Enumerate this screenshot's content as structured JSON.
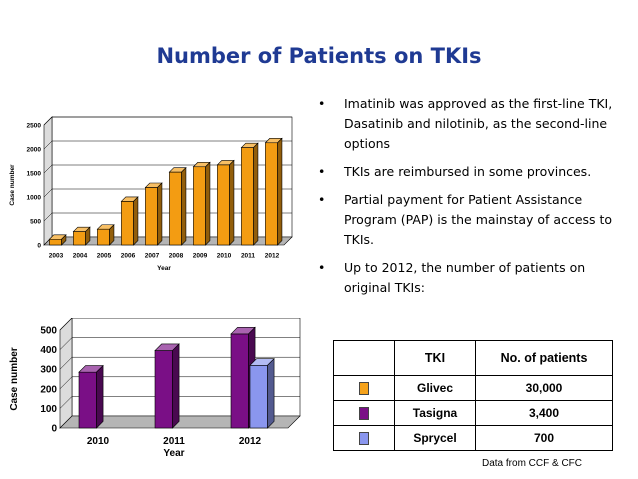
{
  "slide": {
    "title": "Number of Patients on TKIs",
    "bullets": [
      "Imatinib was approved as the first-line TKI, Dasatinib and nilotinib, as the second-line options",
      "TKIs are reimbursed in some provinces.",
      "Partial payment for Patient Assistance Program (PAP) is the mainstay of access to TKIs.",
      "Up to 2012, the number of patients on original TKIs:"
    ],
    "bullet_glyph": "•",
    "source": "Data from CCF & CFC"
  },
  "table": {
    "headers": [
      "TKI",
      "No. of patients"
    ],
    "rows": [
      {
        "swatch": "#f5a21b",
        "name": "Glivec",
        "count": "30,000"
      },
      {
        "swatch": "#7a0f86",
        "name": "Tasigna",
        "count": "3,400"
      },
      {
        "swatch": "#8a96ee",
        "name": "Sprycel",
        "count": "700"
      }
    ]
  },
  "chart_data": [
    {
      "type": "bar",
      "categories": [
        "2003",
        "2004",
        "2005",
        "2006",
        "2007",
        "2008",
        "2009",
        "2010",
        "2011",
        "2012"
      ],
      "values": [
        120,
        280,
        330,
        910,
        1200,
        1520,
        1630,
        1670,
        2030,
        2130
      ],
      "ylim": [
        0,
        2500
      ],
      "yticks": [
        0,
        500,
        1000,
        1500,
        2000,
        2500
      ],
      "xlabel": "Year",
      "ylabel": "Case number",
      "grid": true,
      "color": "#f39c12"
    },
    {
      "type": "bar",
      "categories": [
        "2010",
        "2011",
        "2012"
      ],
      "series": [
        {
          "values": [
            285,
            395,
            480
          ],
          "color": "#7a0f86"
        },
        {
          "values": [
            null,
            null,
            320
          ],
          "color": "#8a96ee"
        }
      ],
      "ylim": [
        0,
        500
      ],
      "yticks": [
        0,
        100,
        200,
        300,
        400,
        500
      ],
      "xlabel": "Year",
      "ylabel": "Case number",
      "grid": true
    }
  ]
}
